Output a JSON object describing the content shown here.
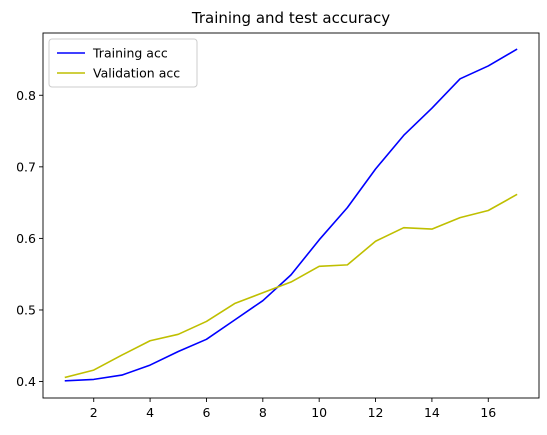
{
  "chart_data": {
    "type": "line",
    "title": "Training and test accuracy",
    "xlabel": "",
    "ylabel": "",
    "x": [
      1,
      2,
      3,
      4,
      5,
      6,
      7,
      8,
      9,
      10,
      11,
      12,
      13,
      14,
      15,
      16,
      17
    ],
    "xlim": [
      0.2,
      17.8
    ],
    "ylim": [
      0.377,
      0.887
    ],
    "xticks": [
      2,
      4,
      6,
      8,
      10,
      12,
      14,
      16
    ],
    "yticks": [
      0.4,
      0.5,
      0.6,
      0.7,
      0.8
    ],
    "grid": false,
    "legend_position": "top-left",
    "series": [
      {
        "name": "Training acc",
        "color": "#0000ff",
        "values": [
          0.401,
          0.403,
          0.409,
          0.423,
          0.442,
          0.459,
          0.486,
          0.513,
          0.549,
          0.598,
          0.643,
          0.697,
          0.744,
          0.782,
          0.823,
          0.841,
          0.864
        ]
      },
      {
        "name": "Validation acc",
        "color": "#bfbf00",
        "values": [
          0.406,
          0.416,
          0.437,
          0.457,
          0.466,
          0.484,
          0.509,
          0.524,
          0.539,
          0.561,
          0.563,
          0.596,
          0.615,
          0.613,
          0.629,
          0.639,
          0.661
        ]
      }
    ]
  }
}
